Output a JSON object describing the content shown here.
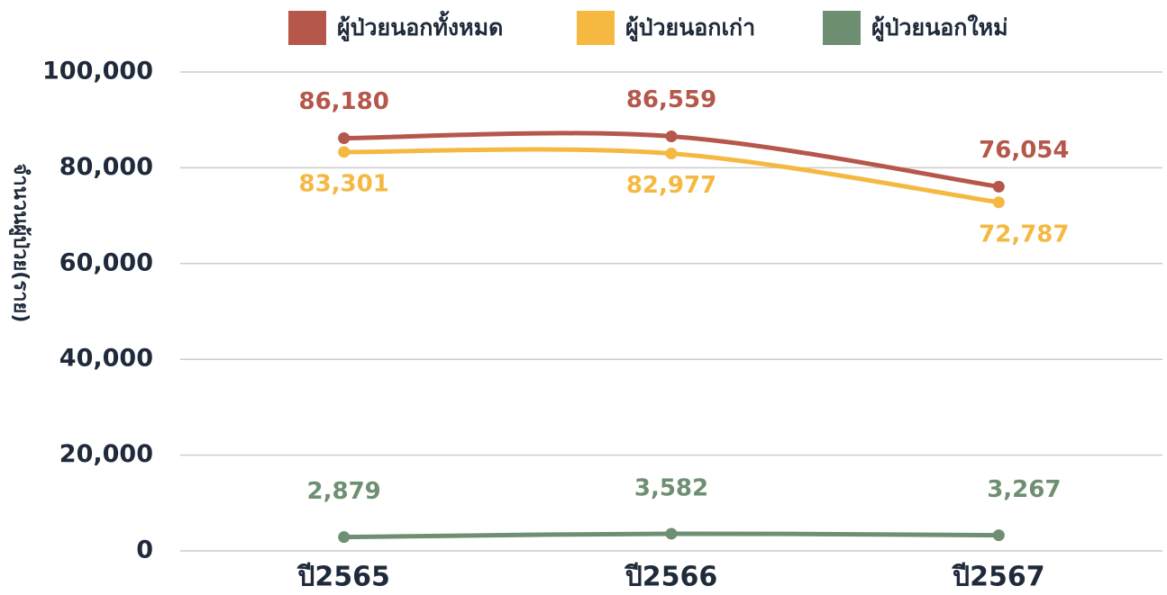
{
  "chart_data": {
    "type": "line",
    "y_label": "จำนวนผู้ป่วย(ราย)",
    "categories": [
      "ปี2565",
      "ปี2566",
      "ปี2567"
    ],
    "series": [
      {
        "name": "ผู้ป่วยนอกทั้งหมด",
        "color": "#b5574b",
        "values": [
          86180,
          86559,
          76054
        ],
        "value_labels": [
          "86,180",
          "86,559",
          "76,054"
        ]
      },
      {
        "name": "ผู้ป่วยนอกเก่า",
        "color": "#f5b942",
        "values": [
          83301,
          82977,
          72787
        ],
        "value_labels": [
          "83,301",
          "82,977",
          "72,787"
        ]
      },
      {
        "name": "ผู้ป่วยนอกใหม่",
        "color": "#6e8f72",
        "values": [
          2879,
          3582,
          3267
        ],
        "value_labels": [
          "2,879",
          "3,582",
          "3,267"
        ]
      }
    ],
    "ylim": [
      0,
      100000
    ],
    "yticks": [
      0,
      {
        "value": 20000,
        "label": "20,000"
      },
      {
        "value": 40000,
        "label": "40,000"
      },
      {
        "value": 60000,
        "label": "60,000"
      },
      {
        "value": 80000,
        "label": "80,000"
      },
      {
        "value": 100000,
        "label": "100,000"
      }
    ],
    "grid": true,
    "legend": "top"
  }
}
